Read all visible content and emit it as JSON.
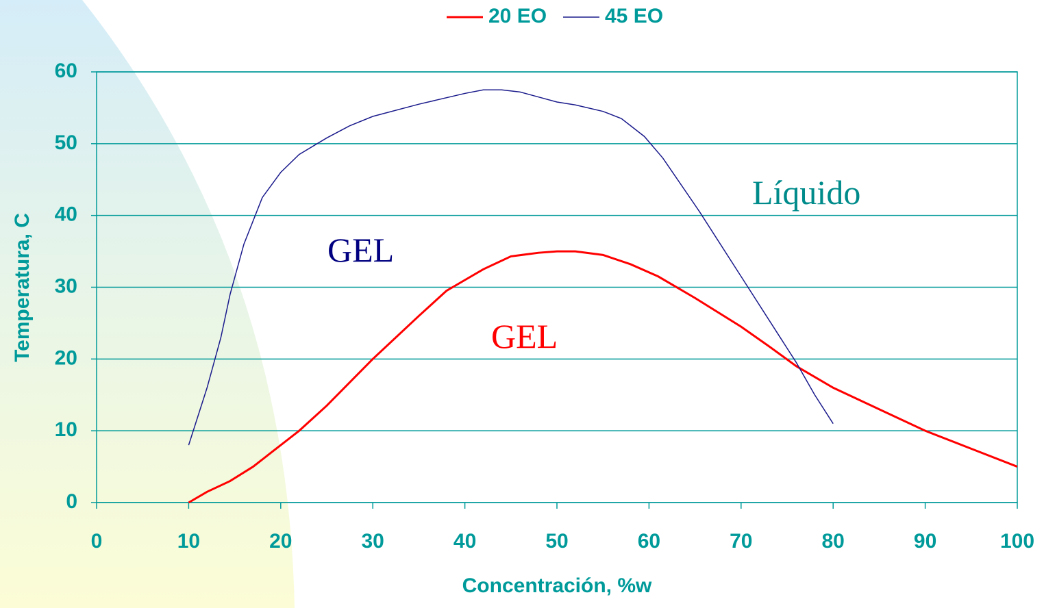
{
  "chart_data": {
    "type": "line",
    "xlabel": "Concentración, %w",
    "ylabel": "Temperatura, C",
    "xlim": [
      0,
      100
    ],
    "xticks": [
      0,
      10,
      20,
      30,
      40,
      50,
      60,
      70,
      80,
      90,
      100
    ],
    "ylim": [
      0,
      60
    ],
    "yticks": [
      0,
      10,
      20,
      30,
      40,
      50,
      60
    ],
    "grid": true,
    "legend": "top",
    "series": [
      {
        "name": "20 EO",
        "color": "#ff0000",
        "x": [
          10,
          12,
          14.5,
          17,
          19,
          22,
          25,
          30,
          35,
          38,
          40,
          42,
          45,
          48,
          50,
          52,
          55,
          58,
          61,
          65,
          70,
          73,
          76,
          80,
          85,
          90,
          95,
          100
        ],
        "values": [
          0,
          1.5,
          3,
          5,
          7,
          10,
          13.5,
          20,
          26,
          29.5,
          31,
          32.5,
          34.3,
          34.8,
          35,
          35,
          34.5,
          33.2,
          31.5,
          28.5,
          24.5,
          21.8,
          19,
          16,
          13,
          10,
          7.5,
          5
        ]
      },
      {
        "name": "45 EO",
        "color": "#1a1a8c",
        "x": [
          10,
          12,
          13.5,
          14.5,
          16,
          18,
          20,
          22,
          25,
          27.5,
          30,
          35,
          40,
          42,
          44,
          46,
          48,
          50,
          52,
          55,
          57,
          59.5,
          61.5,
          65.5,
          70,
          73,
          76,
          78,
          80
        ],
        "values": [
          8,
          16,
          23,
          29,
          36,
          42.5,
          46,
          48.5,
          50.8,
          52.5,
          53.8,
          55.5,
          57,
          57.5,
          57.5,
          57.2,
          56.5,
          55.8,
          55.4,
          54.5,
          53.5,
          51,
          48,
          40.5,
          31.5,
          25.5,
          19.5,
          15,
          11
        ]
      }
    ],
    "annotations": [
      {
        "text": "Líquido",
        "color": "#008b8b"
      },
      {
        "text": "GEL",
        "color": "#000080"
      },
      {
        "text": "GEL",
        "color": "#ff0000"
      }
    ]
  }
}
